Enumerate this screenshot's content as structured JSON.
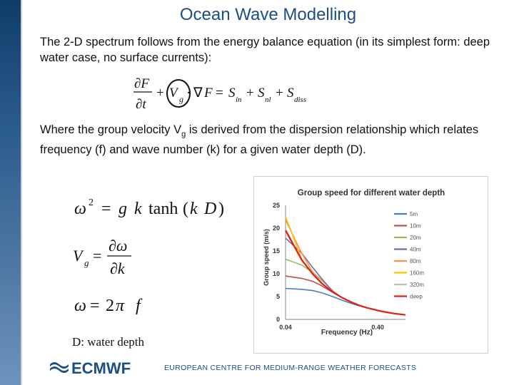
{
  "slide": {
    "title": "Ocean Wave Modelling",
    "intro": "The 2-D spectrum follows from the energy balance equation (in its simplest form: deep water case, no surface currents):",
    "middle_prefix": "Where the group velocity V",
    "middle_sub": "g",
    "middle_suffix": " is derived from the dispersion relationship which relates frequency (f) and wave number (k) for a given water depth (D).",
    "depth_note": "D: water depth",
    "vg_label": "V",
    "vg_sub": "g"
  },
  "equations": {
    "energy_balance": "∂F/∂t + V_g · ∇F = S_in + S_nl + S_diss",
    "dispersion": "ω² = g k tanh(k D)",
    "group_velocity": "V_g = ∂ω/∂k",
    "angular_frequency": "ω = 2π f"
  },
  "footer": {
    "logo_text": "ECMWF",
    "org_name": "EUROPEAN CENTRE FOR MEDIUM-RANGE WEATHER FORECASTS"
  },
  "chart_data": {
    "type": "line",
    "title": "Group speed for different water depth",
    "xlabel": "Frequency (Hz)",
    "ylabel": "Group speed (m/s)",
    "x_scale": "log",
    "xlim": [
      0.04,
      0.8
    ],
    "ylim": [
      0,
      25
    ],
    "y_ticks": [
      0,
      5,
      10,
      15,
      20,
      25
    ],
    "x_ticks": [
      "0.04",
      "0.40"
    ],
    "legend_position": "right",
    "x": [
      0.04,
      0.06,
      0.08,
      0.1,
      0.13,
      0.16,
      0.2,
      0.25,
      0.3,
      0.4,
      0.5,
      0.6,
      0.8
    ],
    "series": [
      {
        "name": "5m",
        "color": "#4a7ebb",
        "values": [
          6.8,
          6.6,
          6.3,
          5.8,
          5.0,
          4.3,
          3.6,
          3.0,
          2.6,
          1.95,
          1.56,
          1.3,
          0.98
        ]
      },
      {
        "name": "10m",
        "color": "#c0504d",
        "values": [
          9.5,
          9.0,
          8.3,
          7.3,
          5.9,
          4.9,
          3.9,
          3.1,
          2.6,
          1.95,
          1.56,
          1.3,
          0.98
        ]
      },
      {
        "name": "20m",
        "color": "#9bbb59",
        "values": [
          13.2,
          11.9,
          10.2,
          8.5,
          6.3,
          4.9,
          3.9,
          3.1,
          2.6,
          1.95,
          1.56,
          1.3,
          0.98
        ]
      },
      {
        "name": "40m",
        "color": "#8064a2",
        "values": [
          17.8,
          14.5,
          11.2,
          8.8,
          6.1,
          4.9,
          3.9,
          3.1,
          2.6,
          1.95,
          1.56,
          1.3,
          0.98
        ]
      },
      {
        "name": "80m",
        "color": "#f79646",
        "values": [
          21.8,
          14.5,
          10.1,
          7.9,
          6.0,
          4.9,
          3.9,
          3.1,
          2.6,
          1.95,
          1.56,
          1.3,
          0.98
        ]
      },
      {
        "name": "160m",
        "color": "#ffc000",
        "values": [
          22.5,
          13.2,
          9.8,
          7.8,
          6.0,
          4.9,
          3.9,
          3.1,
          2.6,
          1.95,
          1.56,
          1.3,
          0.98
        ]
      },
      {
        "name": "320m",
        "color": "#bfbfbf",
        "values": [
          19.8,
          13.1,
          9.8,
          7.8,
          6.0,
          4.9,
          3.9,
          3.1,
          2.6,
          1.95,
          1.56,
          1.3,
          0.98
        ]
      },
      {
        "name": "deep",
        "color": "#e0201b",
        "values": [
          19.5,
          13.0,
          9.8,
          7.8,
          6.0,
          4.9,
          3.9,
          3.1,
          2.6,
          1.95,
          1.56,
          1.3,
          0.98
        ]
      }
    ]
  }
}
